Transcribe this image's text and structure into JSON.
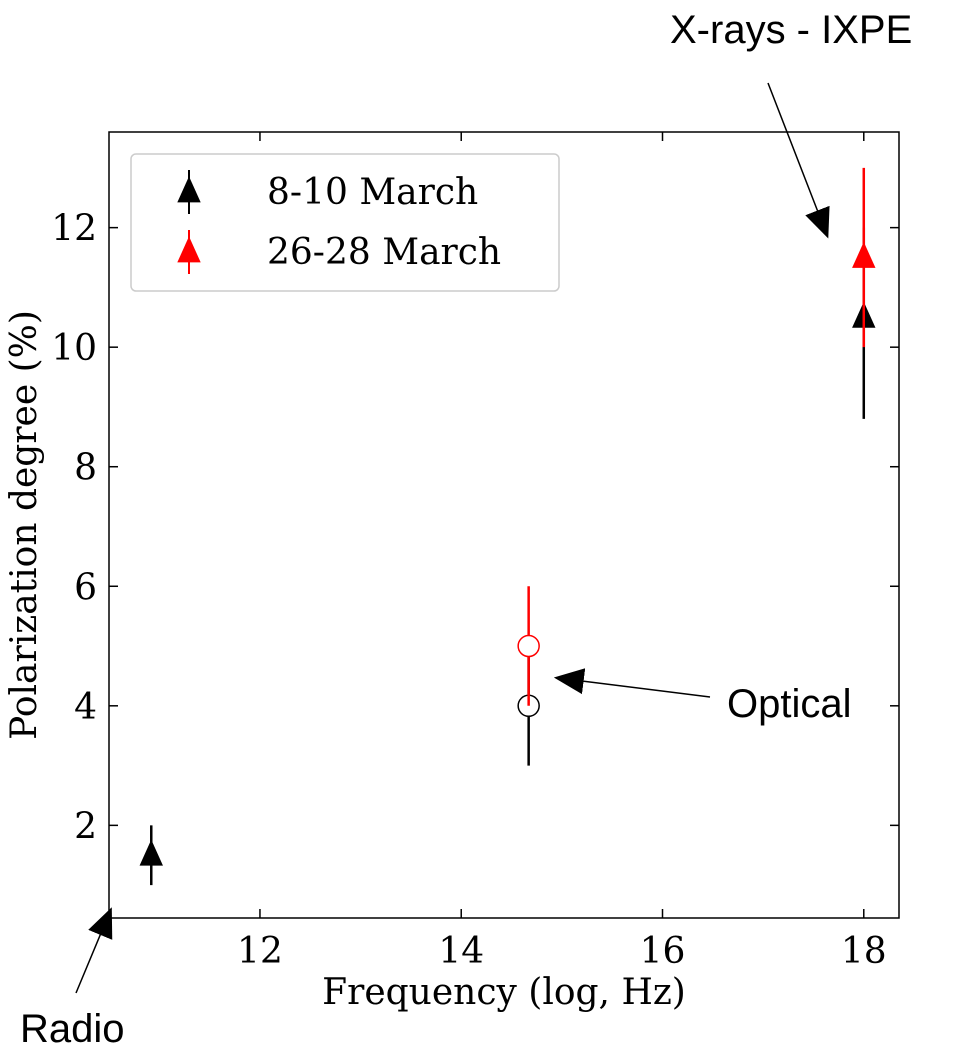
{
  "chart_data": {
    "type": "scatter",
    "xlabel": "Frequency (log, Hz)",
    "ylabel": "Polarization degree (%)",
    "xlim": [
      10.5,
      18.35
    ],
    "ylim": [
      0.45,
      13.6
    ],
    "x_ticks": [
      12,
      14,
      16,
      18
    ],
    "y_ticks": [
      2,
      4,
      6,
      8,
      10,
      12
    ],
    "grid": false,
    "legend_position": "top-left",
    "series": [
      {
        "name": "8-10 March",
        "color": "#000000",
        "points": [
          {
            "x": 10.92,
            "y": 1.5,
            "yerr_low": 0.5,
            "yerr_high": 0.5,
            "marker": "triangle"
          },
          {
            "x": 14.67,
            "y": 4.0,
            "yerr_low": 1.0,
            "yerr_high": 1.0,
            "marker": "open-circle"
          },
          {
            "x": 18.0,
            "y": 10.5,
            "yerr_low": 1.7,
            "yerr_high": 1.5,
            "marker": "triangle"
          }
        ]
      },
      {
        "name": "26-28 March",
        "color": "#ff0000",
        "points": [
          {
            "x": 14.67,
            "y": 5.0,
            "yerr_low": 1.0,
            "yerr_high": 1.0,
            "marker": "open-circle"
          },
          {
            "x": 18.0,
            "y": 11.5,
            "yerr_low": 1.5,
            "yerr_high": 1.5,
            "marker": "triangle"
          }
        ]
      }
    ],
    "annotations": [
      {
        "text": "X-rays - IXPE",
        "target": {
          "x": 17.64,
          "y": 11.85
        }
      },
      {
        "text": "Optical",
        "target": {
          "x": 14.94,
          "y": 4.47
        }
      },
      {
        "text": "Radio",
        "target": {
          "x": 10.52,
          "y": 0.6
        }
      }
    ]
  }
}
